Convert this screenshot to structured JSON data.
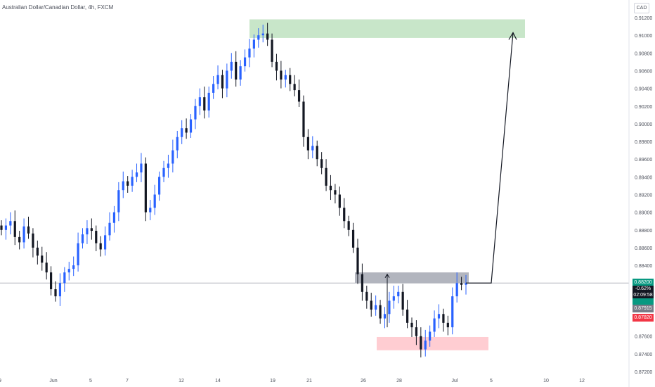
{
  "header": {
    "symbol_title": "Australian Dollar/Canadian Dollar, 4h, FXCM",
    "currency": "CAD"
  },
  "price_labels": {
    "last_price": "0.88200",
    "change_pct": "-0.62%",
    "countdown": "02:09:58",
    "level_gray": "0.87915",
    "level_red": "0.87820"
  },
  "colors": {
    "up": "#2962ff",
    "down": "#131722",
    "supply_zone": "#c8e6c9",
    "demand_zone": "#ffcdd2",
    "resistance_zone": "#b2b5be",
    "last_price_bg": "#089981",
    "gray_label_bg": "#787b86",
    "red_label_bg": "#f23645",
    "grid_line": "#b2b5be"
  },
  "chart_data": {
    "type": "candlestick",
    "title": "Australian Dollar/Canadian Dollar, 4h, FXCM",
    "ylim": [
      0.872,
      0.9135
    ],
    "y_ticks": [
      "0.91200",
      "0.91000",
      "0.90800",
      "0.90600",
      "0.90400",
      "0.90200",
      "0.90000",
      "0.89800",
      "0.89600",
      "0.89400",
      "0.89200",
      "0.89000",
      "0.88800",
      "0.88600",
      "0.88400",
      "0.88200",
      "0.88000",
      "0.87800",
      "0.87600",
      "0.87400",
      "0.87200"
    ],
    "x_ticks": [
      "9",
      "Jun",
      "5",
      "7",
      "12",
      "14",
      "19",
      "21",
      "26",
      "28",
      "Jul",
      "5",
      "10",
      "12"
    ],
    "price_path_close": [
      0.888,
      0.8885,
      0.889,
      0.8872,
      0.8866,
      0.8884,
      0.8876,
      0.886,
      0.8851,
      0.8843,
      0.8832,
      0.8813,
      0.8805,
      0.882,
      0.8832,
      0.8836,
      0.884,
      0.8865,
      0.8875,
      0.8882,
      0.8879,
      0.8865,
      0.8858,
      0.8874,
      0.8888,
      0.89,
      0.8925,
      0.8935,
      0.893,
      0.894,
      0.8945,
      0.8955,
      0.89,
      0.8905,
      0.892,
      0.894,
      0.895,
      0.8955,
      0.897,
      0.8985,
      0.8995,
      0.899,
      0.9005,
      0.902,
      0.903,
      0.9015,
      0.9035,
      0.9045,
      0.9055,
      0.904,
      0.906,
      0.907,
      0.905,
      0.9065,
      0.9075,
      0.9085,
      0.9095,
      0.91,
      0.9102,
      0.9095,
      0.907,
      0.906,
      0.905,
      0.9055,
      0.9045,
      0.9038,
      0.9025,
      0.8985,
      0.897,
      0.8975,
      0.896,
      0.895,
      0.893,
      0.8925,
      0.892,
      0.8905,
      0.889,
      0.888,
      0.886,
      0.883,
      0.881,
      0.88,
      0.879,
      0.8795,
      0.878,
      0.8785,
      0.88,
      0.8805,
      0.881,
      0.879,
      0.8775,
      0.877,
      0.876,
      0.8745,
      0.8755,
      0.8765,
      0.878,
      0.8785,
      0.8775,
      0.877,
      0.8805,
      0.882,
      0.8818,
      0.882
    ],
    "zones": [
      {
        "name": "supply",
        "y_top": 0.9118,
        "y_bottom": 0.9097
      },
      {
        "name": "resistance",
        "y_top": 0.8832,
        "y_bottom": 0.882
      },
      {
        "name": "demand",
        "y_top": 0.8759,
        "y_bottom": 0.8744
      }
    ],
    "last_price": 0.882,
    "arrows": [
      {
        "name": "projection",
        "points": [
          [
            0.882
          ],
          [
            0.9108
          ]
        ]
      }
    ]
  }
}
